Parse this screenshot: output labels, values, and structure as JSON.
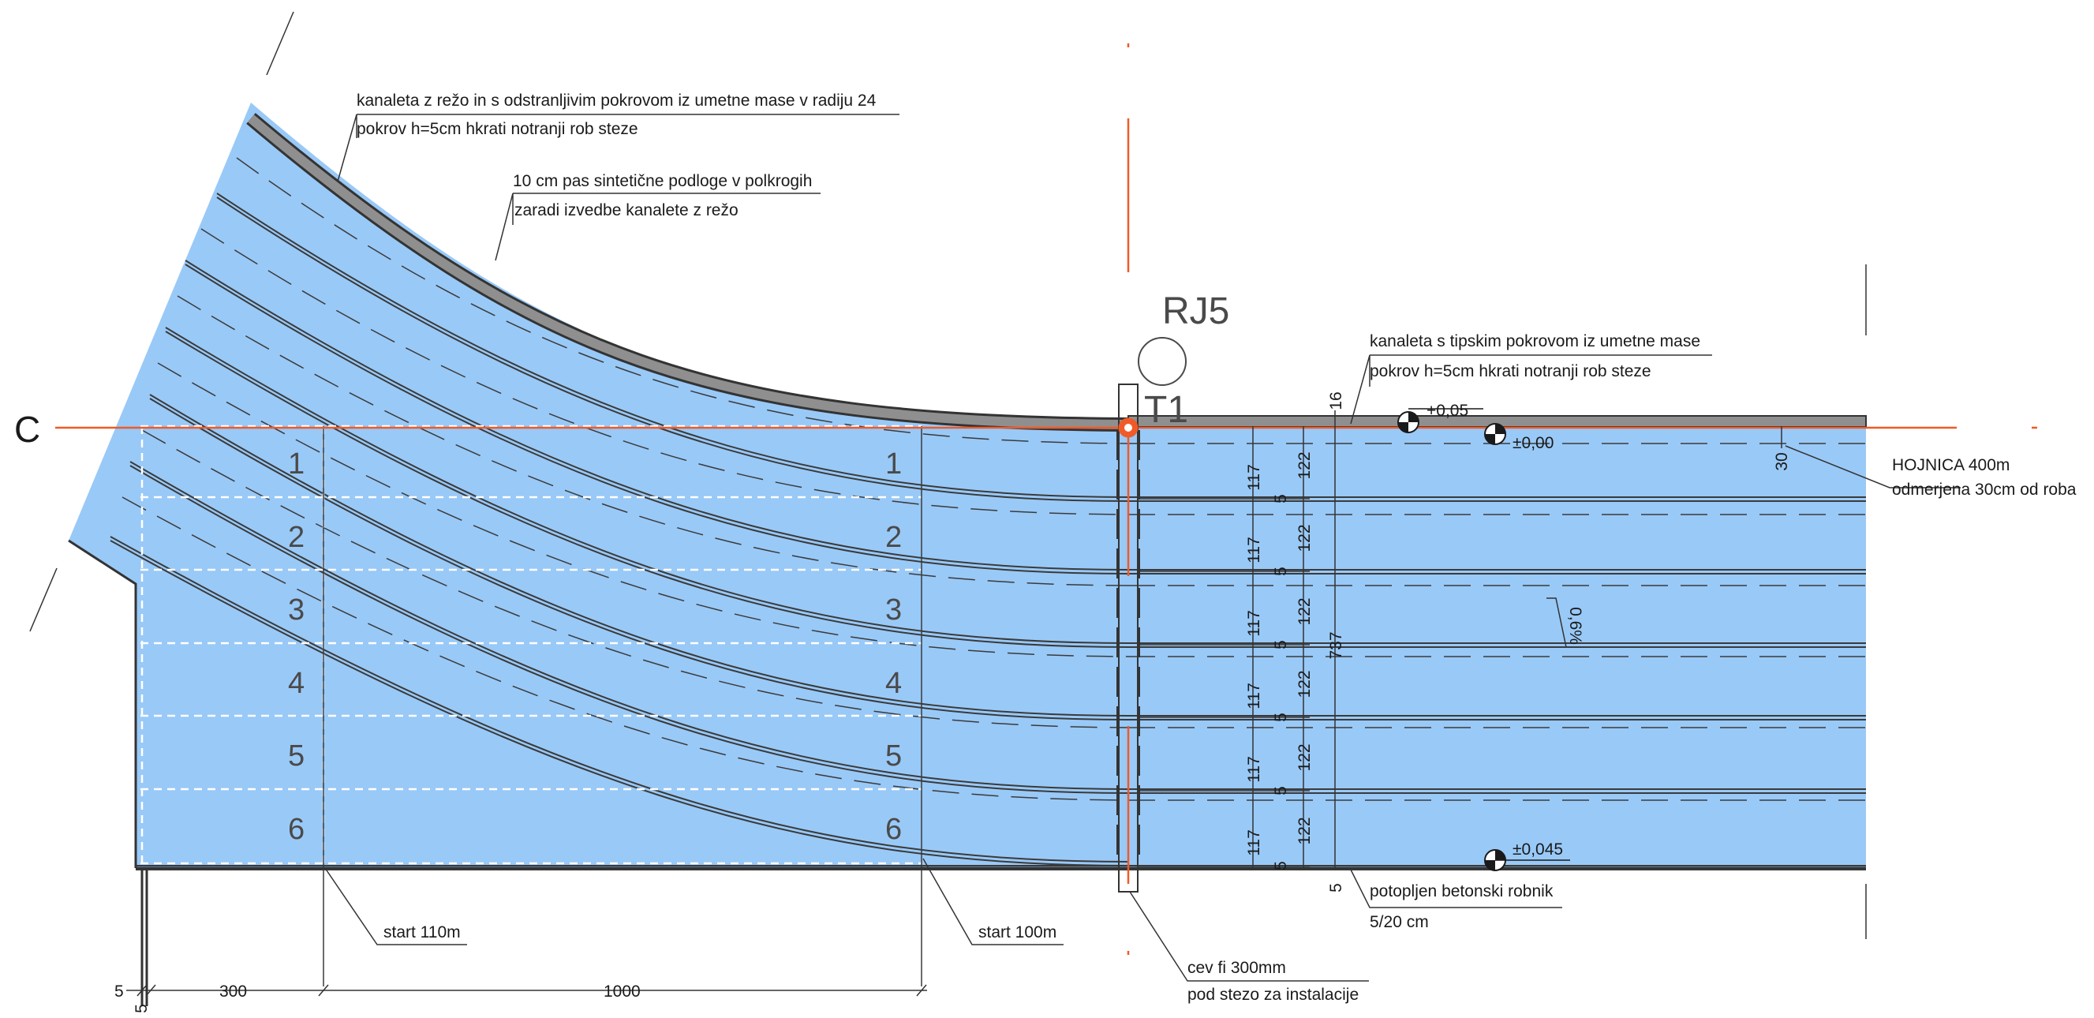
{
  "labels": {
    "section": "C",
    "rj": "RJ5",
    "t1": "T1"
  },
  "notes": {
    "curve_channel_1": "kanaleta z režo in s odstranljivim pokrovom iz umetne mase v radiju 24",
    "curve_channel_2": "pokrov h=5cm hkrati notranji rob steze",
    "synthetic_1": "10 cm pas sintetične podloge v polkrogih",
    "synthetic_2": "zaradi izvedbe kanalete z režo",
    "straight_channel_1": "kanaleta s tipskim pokrovom iz umetne mase",
    "straight_channel_2": "pokrov h=5cm hkrati notranji rob steze",
    "hojnica_1": "HOJNICA 400m",
    "hojnica_2": "odmerjena 30cm od roba",
    "curb_1": "potopljen betonski robnik",
    "curb_2": "5/20 cm",
    "pipe_1": "cev fi 300mm",
    "pipe_2": "pod stezo za instalacije",
    "start110": "start 110m",
    "start100": "start 100m"
  },
  "lanes": [
    "1",
    "2",
    "3",
    "4",
    "5",
    "6"
  ],
  "levels": {
    "top_a": "+0,05",
    "top_b": "±0,00",
    "bottom": "±0,045"
  },
  "slope": "0,6%",
  "dims": {
    "lane_inner": "117",
    "lane_outer": "122",
    "line": "5",
    "top": "16",
    "total": "737",
    "hojnica": "30",
    "bottom_5": "5",
    "bottom_300": "300",
    "bottom_1000": "1000",
    "left_5": "5",
    "tick_5": "5"
  },
  "colors": {
    "track": "#99c9f7",
    "orange": "#f05a28",
    "kerb": "#8f8f8f",
    "line": "#333333"
  }
}
